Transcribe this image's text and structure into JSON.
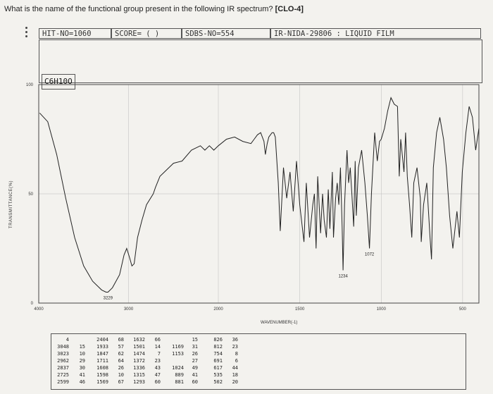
{
  "question": {
    "text": "What is the name of the functional group present in the following IR spectrum?",
    "tag": "[CLO-4]"
  },
  "header": {
    "hit": "HIT-NO=1060",
    "score": "SCORE=  (   )",
    "sdbs": "SDBS-NO=554",
    "ir": "IR-NIDA-29806 : LIQUID FILM"
  },
  "formula": "C6H10O",
  "chart_data": {
    "type": "line",
    "xlabel": "WAVENUMBER(-1)",
    "ylabel": "TRANSMITTANCE(%)",
    "xlim": [
      4000,
      400
    ],
    "ylim": [
      0,
      100
    ],
    "y_ticks": [
      0,
      50,
      100
    ],
    "x_ticks": [
      4000,
      3000,
      2000,
      1500,
      1000,
      500
    ],
    "x_tick_labels": [
      "4000",
      "3000",
      "2000",
      "1500",
      "1000",
      "500"
    ],
    "grid": true,
    "series": [
      {
        "x": [
          3990,
          3900,
          3800,
          3700,
          3600,
          3500,
          3400,
          3300,
          3250,
          3229,
          3180,
          3100,
          3050,
          3020,
          2990,
          2962,
          2937,
          2900,
          2850,
          2800,
          2725,
          2700,
          2650,
          2600,
          2500,
          2404,
          2300,
          2200,
          2150,
          2100,
          2050,
          2000,
          1950,
          1900,
          1850,
          1800,
          1780,
          1760,
          1740,
          1720,
          1711,
          1700,
          1690,
          1680,
          1670,
          1660,
          1650,
          1632,
          1620,
          1600,
          1580,
          1560,
          1540,
          1520,
          1500,
          1474,
          1460,
          1440,
          1420,
          1410,
          1400,
          1390,
          1372,
          1360,
          1350,
          1336,
          1325,
          1315,
          1300,
          1293,
          1280,
          1270,
          1260,
          1250,
          1240,
          1234,
          1225,
          1210,
          1200,
          1190,
          1180,
          1169,
          1160,
          1153,
          1140,
          1120,
          1100,
          1085,
          1072,
          1060,
          1040,
          1024,
          1010,
          1000,
          980,
          960,
          940,
          920,
          900,
          889,
          880,
          860,
          850,
          840,
          826,
          812,
          800,
          780,
          760,
          754,
          740,
          720,
          700,
          691,
          680,
          660,
          640,
          617,
          600,
          580,
          560,
          535,
          520,
          502,
          480,
          460,
          440,
          420,
          400
        ],
        "values": [
          87,
          83,
          68,
          48,
          30,
          17,
          10,
          6,
          5,
          5,
          7,
          13,
          22,
          25,
          21,
          17,
          18,
          30,
          38,
          45,
          50,
          53,
          58,
          60,
          64,
          65,
          70,
          72,
          70,
          72,
          70,
          72,
          75,
          76,
          74,
          73,
          75,
          77,
          78,
          74,
          68,
          73,
          76,
          77,
          78,
          78,
          76,
          55,
          33,
          62,
          48,
          60,
          42,
          65,
          45,
          28,
          55,
          30,
          45,
          50,
          25,
          58,
          32,
          50,
          38,
          30,
          52,
          34,
          60,
          30,
          48,
          55,
          45,
          62,
          35,
          15,
          45,
          70,
          55,
          62,
          50,
          35,
          65,
          40,
          62,
          70,
          55,
          40,
          25,
          50,
          78,
          65,
          74,
          75,
          80,
          88,
          94,
          91,
          90,
          58,
          75,
          60,
          78,
          58,
          45,
          30,
          55,
          62,
          48,
          28,
          45,
          55,
          30,
          20,
          62,
          78,
          85,
          75,
          62,
          40,
          25,
          42,
          30,
          60,
          78,
          90,
          85,
          70,
          80
        ]
      }
    ],
    "annotations": [
      {
        "x": 3229,
        "text": "3229"
      },
      {
        "x": 1234,
        "text": "1234"
      },
      {
        "x": 1072,
        "text": "1072"
      }
    ]
  },
  "peak_table": [
    {
      "pos": 4,
      "pct": 2404,
      "b_pos": 68,
      "b_pct": 1632,
      "c_pos": 66,
      "d_pos": 15,
      "e_pos": 826,
      "e_pct": 36
    },
    {
      "pos": 3048,
      "pct": 15
    },
    {
      "pos": 3023,
      "pct": 10
    },
    {
      "pos": 2962,
      "pct": 29
    },
    {
      "pos": 2837,
      "pct": 30
    },
    {
      "pos": 2725,
      "pct": 41
    },
    {
      "pos": 2599,
      "pct": 46
    }
  ],
  "peak_columns": [
    [
      "4",
      "3048",
      "3023",
      "2962",
      "2837",
      "2725",
      "2599"
    ],
    [
      "",
      "15",
      "10",
      "29",
      "30",
      "41",
      "46"
    ],
    [
      "2404",
      "1933",
      "1847",
      "1711",
      "1608",
      "1598",
      "1569"
    ],
    [
      "68",
      "57",
      "62",
      "64",
      "26",
      "10",
      "67"
    ],
    [
      "1632",
      "1501",
      "1474",
      "1372",
      "1336",
      "1315",
      "1293"
    ],
    [
      "66",
      "14",
      "7",
      "23",
      "43",
      "47",
      "60"
    ],
    [
      "",
      "1169",
      "1153",
      "",
      "1024",
      "889",
      "881"
    ],
    [
      "15",
      "31",
      "26",
      "27",
      "49",
      "41",
      "60"
    ],
    [
      "826",
      "812",
      "754",
      "691",
      "617",
      "535",
      "502"
    ],
    [
      "36",
      "23",
      "8",
      "6",
      "44",
      "18",
      "20"
    ]
  ]
}
